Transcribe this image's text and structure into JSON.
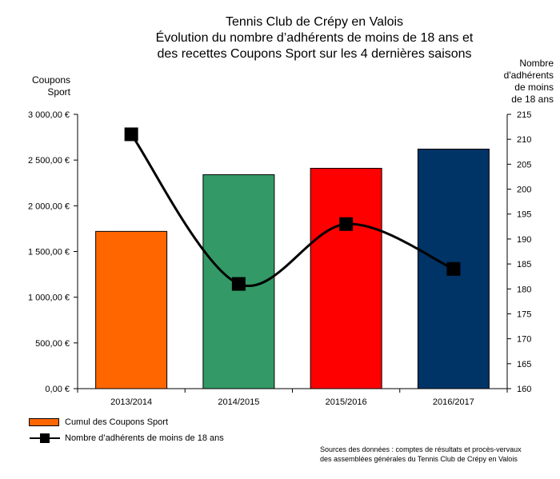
{
  "chart_data": {
    "type": "bar+line",
    "title_lines": [
      "Tennis Club de Crépy en Valois",
      "Évolution du nombre d’adhérents de moins de 18 ans et",
      "des recettes Coupons Sport sur les 4 dernières saisons"
    ],
    "categories": [
      "2013/2014",
      "2014/2015",
      "2015/2016",
      "2016/2017"
    ],
    "left_axis": {
      "title_lines": [
        "Coupons",
        "Sport"
      ],
      "range": [
        0,
        3000
      ],
      "ticks": [
        "0,00 €",
        "500,00 €",
        "1 000,00 €",
        "1 500,00 €",
        "2 000,00 €",
        "2 500,00 €",
        "3 000,00 €"
      ]
    },
    "right_axis": {
      "title_lines": [
        "Nombre",
        "d'adhérents",
        "de moins",
        "de 18 ans"
      ],
      "range": [
        160,
        215
      ],
      "ticks": [
        "160",
        "165",
        "170",
        "175",
        "180",
        "185",
        "190",
        "195",
        "200",
        "205",
        "210",
        "215"
      ]
    },
    "bar_series": {
      "name": "Cumul des Coupons Sport",
      "values": [
        1720,
        2340,
        2410,
        2620
      ],
      "colors": [
        "#ff6600",
        "#339966",
        "#ff0000",
        "#003366"
      ]
    },
    "line_series": {
      "name": "Nombre d’adhérents de moins de 18 ans",
      "values": [
        211,
        181,
        193,
        184
      ],
      "color": "#000000"
    },
    "grid": false,
    "legend_placement": "bottom-left"
  },
  "source_lines": [
    "Sources des données : comptes de résultats et procès-vervaux",
    "des assemblées générales du Tennis Club de Crépy en Valois"
  ]
}
